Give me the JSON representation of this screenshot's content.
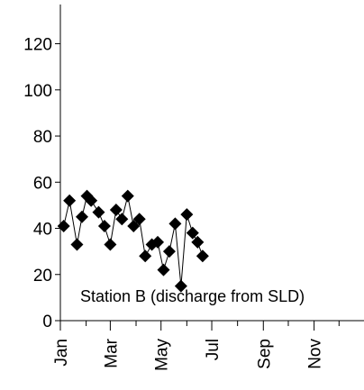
{
  "chart_data": {
    "type": "line",
    "title": "",
    "xlabel": "",
    "ylabel": "",
    "annotation": "Station B (discharge from SLD)",
    "x_ticks": [
      "Jan",
      "Mar",
      "May",
      "Jul",
      "Sep",
      "Nov"
    ],
    "x_range_days": [
      0,
      365
    ],
    "ylim": [
      0,
      137
    ],
    "y_ticks": [
      0,
      20,
      40,
      60,
      80,
      100,
      120
    ],
    "grid": false,
    "legend": "none",
    "series": [
      {
        "marker": "diamond",
        "color": "#000000",
        "points": [
          {
            "date": "2000-01-05",
            "y": 41
          },
          {
            "date": "2000-01-12",
            "y": 52
          },
          {
            "date": "2000-01-21",
            "y": 33
          },
          {
            "date": "2000-01-27",
            "y": 45
          },
          {
            "date": "2000-02-02",
            "y": 54
          },
          {
            "date": "2000-02-07",
            "y": 52
          },
          {
            "date": "2000-02-16",
            "y": 47
          },
          {
            "date": "2000-02-23",
            "y": 41
          },
          {
            "date": "2000-03-01",
            "y": 33
          },
          {
            "date": "2000-03-08",
            "y": 48
          },
          {
            "date": "2000-03-15",
            "y": 44
          },
          {
            "date": "2000-03-22",
            "y": 54
          },
          {
            "date": "2000-03-29",
            "y": 41
          },
          {
            "date": "2000-04-05",
            "y": 44
          },
          {
            "date": "2000-04-12",
            "y": 28
          },
          {
            "date": "2000-04-20",
            "y": 33
          },
          {
            "date": "2000-04-27",
            "y": 34
          },
          {
            "date": "2000-05-04",
            "y": 22
          },
          {
            "date": "2000-05-11",
            "y": 30
          },
          {
            "date": "2000-05-18",
            "y": 42
          },
          {
            "date": "2000-05-25",
            "y": 15
          },
          {
            "date": "2000-06-01",
            "y": 46
          },
          {
            "date": "2000-06-08",
            "y": 38
          },
          {
            "date": "2000-06-14",
            "y": 34
          },
          {
            "date": "2000-06-20",
            "y": 28
          }
        ]
      }
    ]
  }
}
